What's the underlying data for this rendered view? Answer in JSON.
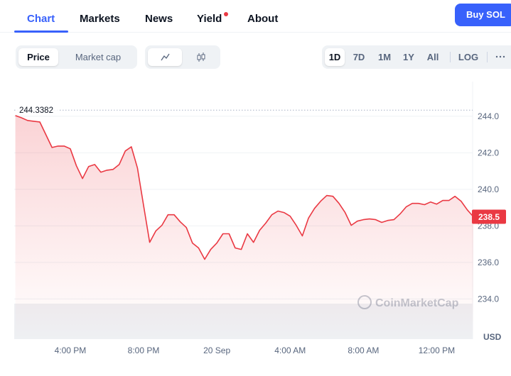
{
  "nav": {
    "tabs": [
      "Chart",
      "Markets",
      "News",
      "Yield",
      "About"
    ],
    "button": "Buy SOL"
  },
  "toolbar": {
    "modes": [
      "Price",
      "Market cap"
    ],
    "ranges": [
      "1D",
      "7D",
      "1M",
      "1Y",
      "All",
      "LOG"
    ]
  },
  "chart_data": {
    "type": "line",
    "xlim": [
      0,
      75
    ],
    "xticks": [
      {
        "value": 9,
        "label": "4:00 PM"
      },
      {
        "value": 21,
        "label": "8:00 PM"
      },
      {
        "value": 33,
        "label": "20 Sep"
      },
      {
        "value": 45,
        "label": "4:00 AM"
      },
      {
        "value": 57,
        "label": "8:00 AM"
      },
      {
        "value": 69,
        "label": "12:00 PM"
      }
    ],
    "ylim": [
      231.8,
      245.9
    ],
    "yticks": [
      {
        "value": 234,
        "label": "234.0"
      },
      {
        "value": 236,
        "label": "236.0"
      },
      {
        "value": 238,
        "label": "238.0"
      },
      {
        "value": 240,
        "label": "240.0"
      },
      {
        "value": 242,
        "label": "242.0"
      },
      {
        "value": 244,
        "label": "244.0"
      }
    ],
    "y_unit": "USD",
    "grid": true,
    "color": "#ea3943",
    "reference_price": 244.3382,
    "current_price": 238.5,
    "watermark": "CoinMarketCap",
    "series": [
      {
        "name": "Price",
        "color": "#ea3943",
        "values": [
          244.04,
          243.92,
          243.77,
          243.73,
          243.69,
          242.99,
          242.29,
          242.37,
          242.37,
          242.22,
          241.29,
          240.59,
          241.25,
          241.36,
          240.94,
          241.05,
          241.09,
          241.36,
          242.1,
          242.33,
          241.17,
          239.12,
          237.1,
          237.72,
          238.03,
          238.61,
          238.61,
          238.22,
          237.91,
          237.06,
          236.79,
          236.17,
          236.71,
          237.06,
          237.57,
          237.57,
          236.79,
          236.71,
          237.57,
          237.1,
          237.76,
          238.15,
          238.61,
          238.81,
          238.73,
          238.53,
          238.03,
          237.45,
          238.42,
          238.96,
          239.35,
          239.66,
          239.62,
          239.23,
          238.73,
          238.03,
          238.26,
          238.34,
          238.38,
          238.34,
          238.19,
          238.3,
          238.34,
          238.65,
          239.04,
          239.23,
          239.23,
          239.16,
          239.31,
          239.19,
          239.39,
          239.39,
          239.62,
          239.35,
          238.88,
          238.5
        ]
      }
    ]
  }
}
